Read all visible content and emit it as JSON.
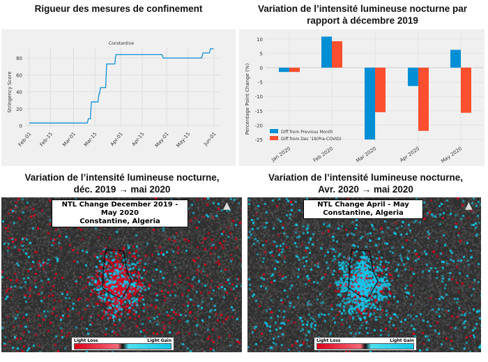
{
  "panels": {
    "stringency_title": "Rigueur des mesures de confinement",
    "ntl_bar_title": "Variation de l’intensité lumineuse nocturne par rapport à décembre 2019",
    "map1_title_l1": "Variation de l’intensité lumineuse nocturne,",
    "map1_title_l2": "déc. 2019 → mai 2020",
    "map2_title_l1": "Variation de l’intensité lumineuse nocturne,",
    "map2_title_l2": "Avr. 2020 → mai 2020"
  },
  "maps": [
    {
      "title_l1": "NTL Change December 2019 - May 2020",
      "title_l2": "Constantine, Algeria",
      "legend_loss": "Light Loss",
      "legend_gain": "Light Gain",
      "north": "N"
    },
    {
      "title_l1": "NTL Change April - May",
      "title_l2": "Constantine, Algeria",
      "legend_loss": "Light Loss",
      "legend_gain": "Light Gain",
      "north": "N"
    }
  ],
  "colors": {
    "panel_bg": "#f0f0f0",
    "line": "#1f96d8",
    "prev_month": "#008fd5",
    "dec19": "#fc4f30",
    "loss": "#e0001a",
    "gain": "#12c8ea"
  },
  "chart_data": [
    {
      "type": "line",
      "title": "Constantine",
      "ylabel": "Stringency Score",
      "xlabel": "",
      "xticks": [
        "Feb-01",
        "Feb-15",
        "Mar-01",
        "Mar-15",
        "Apr-01",
        "Apr-15",
        "May-01",
        "May-15",
        "Jun-01"
      ],
      "yticks": [
        0,
        20,
        40,
        60,
        80
      ],
      "ylim": [
        0,
        92
      ],
      "grid": true,
      "steps": [
        [
          "2020-02-01",
          3
        ],
        [
          "2020-03-10",
          8
        ],
        [
          "2020-03-12",
          28
        ],
        [
          "2020-03-17",
          38
        ],
        [
          "2020-03-18",
          45
        ],
        [
          "2020-03-22",
          73
        ],
        [
          "2020-03-28",
          84
        ],
        [
          "2020-04-28",
          80
        ],
        [
          "2020-05-24",
          86
        ],
        [
          "2020-05-29",
          91
        ],
        [
          "2020-05-31",
          91
        ]
      ]
    },
    {
      "type": "bar",
      "ylabel": "Percentage Point Change (%)",
      "xlabel": "",
      "categories": [
        "Jan 2020",
        "Feb 2020",
        "Mar 2020",
        "Apr 2020",
        "May 2020"
      ],
      "yticks": [
        10,
        5,
        0,
        -5,
        -10,
        -15,
        -20,
        -25
      ],
      "ylim": [
        -26,
        12
      ],
      "grid": true,
      "legend": "bottom-left",
      "series": [
        {
          "name": "Diff from Previous Month",
          "values": [
            -1.5,
            10.8,
            -25,
            -6.4,
            6.2
          ]
        },
        {
          "name": "Diff from Dec '19(Pre-COVID)",
          "values": [
            -1.5,
            9.2,
            -15.5,
            -22,
            -15.7
          ]
        }
      ]
    }
  ]
}
